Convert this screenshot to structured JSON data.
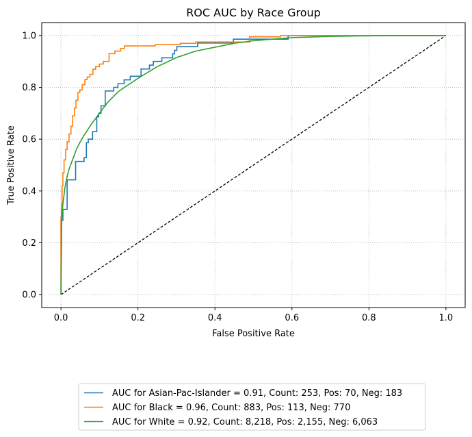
{
  "chart_data": {
    "type": "line",
    "title": "ROC AUC by Race Group",
    "xlabel": "False Positive Rate",
    "ylabel": "True Positive Rate",
    "xlim": [
      -0.05,
      1.05
    ],
    "ylim": [
      -0.05,
      1.05
    ],
    "xticks": [
      0.0,
      0.2,
      0.4,
      0.6,
      0.8,
      1.0
    ],
    "yticks": [
      0.0,
      0.2,
      0.4,
      0.6,
      0.8,
      1.0
    ],
    "xtick_labels": [
      "0.0",
      "0.2",
      "0.4",
      "0.6",
      "0.8",
      "1.0"
    ],
    "ytick_labels": [
      "0.0",
      "0.2",
      "0.4",
      "0.6",
      "0.8",
      "1.0"
    ],
    "grid": true,
    "legend_position": "below plot",
    "series": [
      {
        "name": "AUC for Asian-Pac-Islander = 0.91, Count: 253, Pos: 70, Neg: 183",
        "color": "#1f77b4",
        "step": true,
        "x": [
          0.0,
          0.0,
          0.005,
          0.005,
          0.016,
          0.016,
          0.038,
          0.038,
          0.06,
          0.06,
          0.066,
          0.066,
          0.071,
          0.071,
          0.082,
          0.082,
          0.093,
          0.093,
          0.098,
          0.098,
          0.104,
          0.104,
          0.115,
          0.115,
          0.137,
          0.137,
          0.148,
          0.148,
          0.164,
          0.164,
          0.18,
          0.18,
          0.208,
          0.208,
          0.23,
          0.23,
          0.24,
          0.24,
          0.262,
          0.262,
          0.29,
          0.29,
          0.295,
          0.295,
          0.301,
          0.301,
          0.355,
          0.355,
          0.448,
          0.448,
          0.459,
          0.459,
          0.497,
          0.497,
          0.536,
          0.536,
          0.59,
          0.59,
          1.0
        ],
        "y": [
          0.0,
          0.286,
          0.286,
          0.329,
          0.329,
          0.443,
          0.443,
          0.514,
          0.514,
          0.529,
          0.529,
          0.586,
          0.586,
          0.6,
          0.6,
          0.629,
          0.629,
          0.686,
          0.686,
          0.7,
          0.7,
          0.729,
          0.729,
          0.786,
          0.786,
          0.8,
          0.8,
          0.814,
          0.814,
          0.829,
          0.829,
          0.843,
          0.843,
          0.871,
          0.871,
          0.886,
          0.886,
          0.9,
          0.9,
          0.914,
          0.914,
          0.929,
          0.929,
          0.943,
          0.943,
          0.957,
          0.957,
          0.971,
          0.971,
          0.986,
          0.986,
          0.986,
          0.986,
          0.986,
          0.986,
          0.986,
          0.986,
          1.0,
          1.0
        ]
      },
      {
        "name": "AUC for Black = 0.96, Count: 883, Pos: 113, Neg: 770",
        "color": "#ff7f0e",
        "step": true,
        "x": [
          0.0,
          0.0,
          0.001,
          0.001,
          0.003,
          0.003,
          0.005,
          0.005,
          0.008,
          0.008,
          0.012,
          0.012,
          0.016,
          0.016,
          0.021,
          0.021,
          0.026,
          0.026,
          0.03,
          0.03,
          0.035,
          0.035,
          0.039,
          0.039,
          0.044,
          0.044,
          0.049,
          0.049,
          0.055,
          0.055,
          0.062,
          0.062,
          0.068,
          0.068,
          0.075,
          0.075,
          0.083,
          0.083,
          0.09,
          0.09,
          0.1,
          0.1,
          0.11,
          0.11,
          0.125,
          0.125,
          0.14,
          0.14,
          0.155,
          0.155,
          0.165,
          0.165,
          0.21,
          0.21,
          0.245,
          0.245,
          0.31,
          0.31,
          0.35,
          0.35,
          0.49,
          0.49,
          0.57,
          0.57,
          1.0
        ],
        "y": [
          0.0,
          0.3,
          0.3,
          0.35,
          0.35,
          0.42,
          0.42,
          0.47,
          0.47,
          0.52,
          0.52,
          0.56,
          0.56,
          0.59,
          0.59,
          0.62,
          0.62,
          0.65,
          0.65,
          0.69,
          0.69,
          0.72,
          0.72,
          0.75,
          0.75,
          0.78,
          0.78,
          0.79,
          0.79,
          0.81,
          0.81,
          0.83,
          0.83,
          0.84,
          0.84,
          0.85,
          0.85,
          0.87,
          0.87,
          0.88,
          0.88,
          0.89,
          0.89,
          0.9,
          0.9,
          0.93,
          0.93,
          0.94,
          0.94,
          0.95,
          0.95,
          0.96,
          0.96,
          0.96,
          0.96,
          0.965,
          0.965,
          0.97,
          0.97,
          0.975,
          0.975,
          0.995,
          0.995,
          1.0,
          1.0
        ]
      },
      {
        "name": "AUC for White = 0.92, Count: 8,218, Pos: 2,155, Neg: 6,063",
        "color": "#2ca02c",
        "step": false,
        "x": [
          0.0,
          0.002,
          0.005,
          0.01,
          0.015,
          0.02,
          0.03,
          0.04,
          0.05,
          0.06,
          0.08,
          0.1,
          0.12,
          0.15,
          0.18,
          0.2,
          0.25,
          0.3,
          0.35,
          0.4,
          0.45,
          0.5,
          0.6,
          0.7,
          0.8,
          0.9,
          1.0
        ],
        "y": [
          0.0,
          0.29,
          0.35,
          0.41,
          0.45,
          0.48,
          0.52,
          0.56,
          0.59,
          0.615,
          0.66,
          0.7,
          0.74,
          0.785,
          0.815,
          0.835,
          0.88,
          0.915,
          0.94,
          0.955,
          0.97,
          0.98,
          0.992,
          0.997,
          0.999,
          1.0,
          1.0
        ]
      },
      {
        "name": "",
        "color": "#000000",
        "dashed": true,
        "x": [
          0.0,
          1.0
        ],
        "y": [
          0.0,
          1.0
        ]
      }
    ]
  }
}
